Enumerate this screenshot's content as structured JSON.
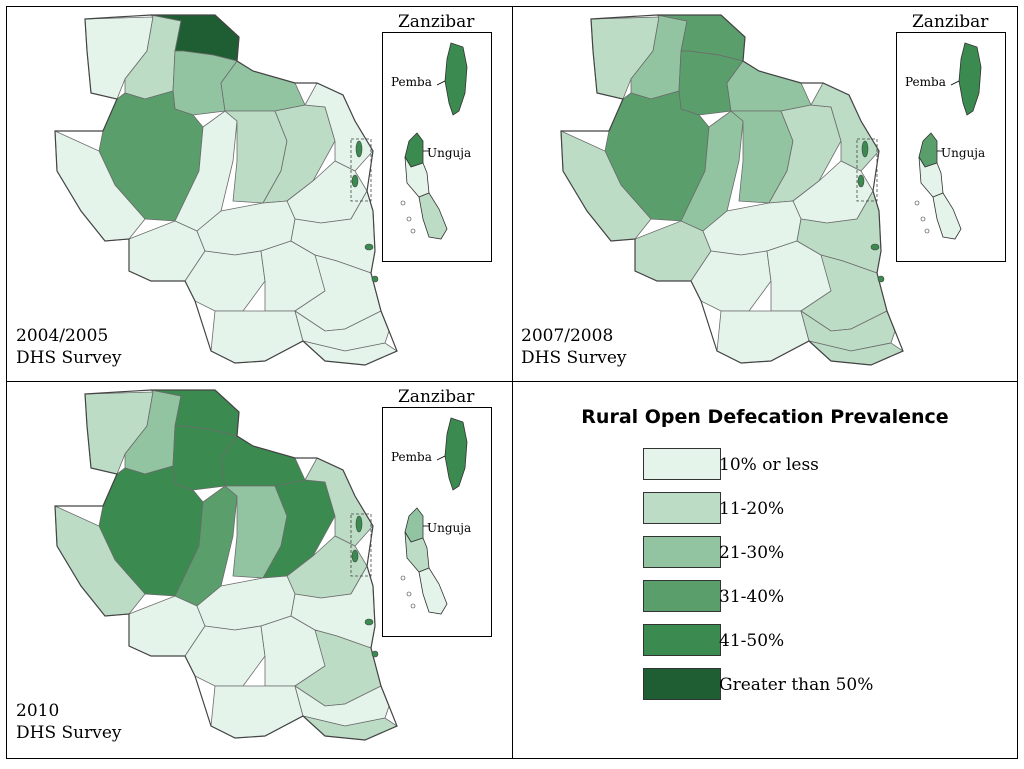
{
  "colors": {
    "c1": "#e4f4ea",
    "c2": "#bcdcc6",
    "c3": "#93c4a1",
    "c4": "#5a9e6c",
    "c5": "#3b8a50",
    "c6": "#1f5e33",
    "border": "#6b6b6b"
  },
  "maps": [
    {
      "survey_year": "2004/2005",
      "survey_name": "DHS Survey",
      "inset": {
        "title": "Zanzibar",
        "pemba_label": "Pemba",
        "unguja_label": "Unguja",
        "pemba_level": 5,
        "unguja_north_level": 5,
        "unguja_mid_level": 1,
        "unguja_south_level": 2
      },
      "region_levels": [
        1,
        2,
        6,
        3,
        3,
        4,
        1,
        1,
        2,
        2,
        1,
        1,
        1,
        1,
        1,
        1,
        1,
        1,
        1,
        1,
        1
      ]
    },
    {
      "survey_year": "2007/2008",
      "survey_name": "DHS Survey",
      "inset": {
        "title": "Zanzibar",
        "pemba_label": "Pemba",
        "unguja_label": "Unguja",
        "pemba_level": 5,
        "unguja_north_level": 4,
        "unguja_mid_level": 1,
        "unguja_south_level": 1
      },
      "region_levels": [
        2,
        3,
        4,
        4,
        3,
        4,
        2,
        3,
        3,
        2,
        2,
        1,
        2,
        1,
        1,
        1,
        2,
        2,
        1,
        2,
        2
      ]
    },
    {
      "survey_year": "2010",
      "survey_name": "DHS Survey",
      "inset": {
        "title": "Zanzibar",
        "pemba_label": "Pemba",
        "unguja_label": "Unguja",
        "pemba_level": 5,
        "unguja_north_level": 3,
        "unguja_mid_level": 2,
        "unguja_south_level": 1
      },
      "region_levels": [
        2,
        3,
        5,
        5,
        5,
        5,
        2,
        4,
        3,
        5,
        2,
        2,
        1,
        1,
        1,
        1,
        1,
        2,
        1,
        1,
        2
      ]
    }
  ],
  "legend": {
    "title": "Rural Open Defecation Prevalence",
    "items": [
      {
        "label": "10% or less",
        "color": "#e4f4ea"
      },
      {
        "label": "11-20%",
        "color": "#bcdcc6"
      },
      {
        "label": "21-30%",
        "color": "#93c4a1"
      },
      {
        "label": "31-40%",
        "color": "#5a9e6c"
      },
      {
        "label": "41-50%",
        "color": "#3b8a50"
      },
      {
        "label": "Greater than 50%",
        "color": "#1f5e33"
      }
    ]
  }
}
